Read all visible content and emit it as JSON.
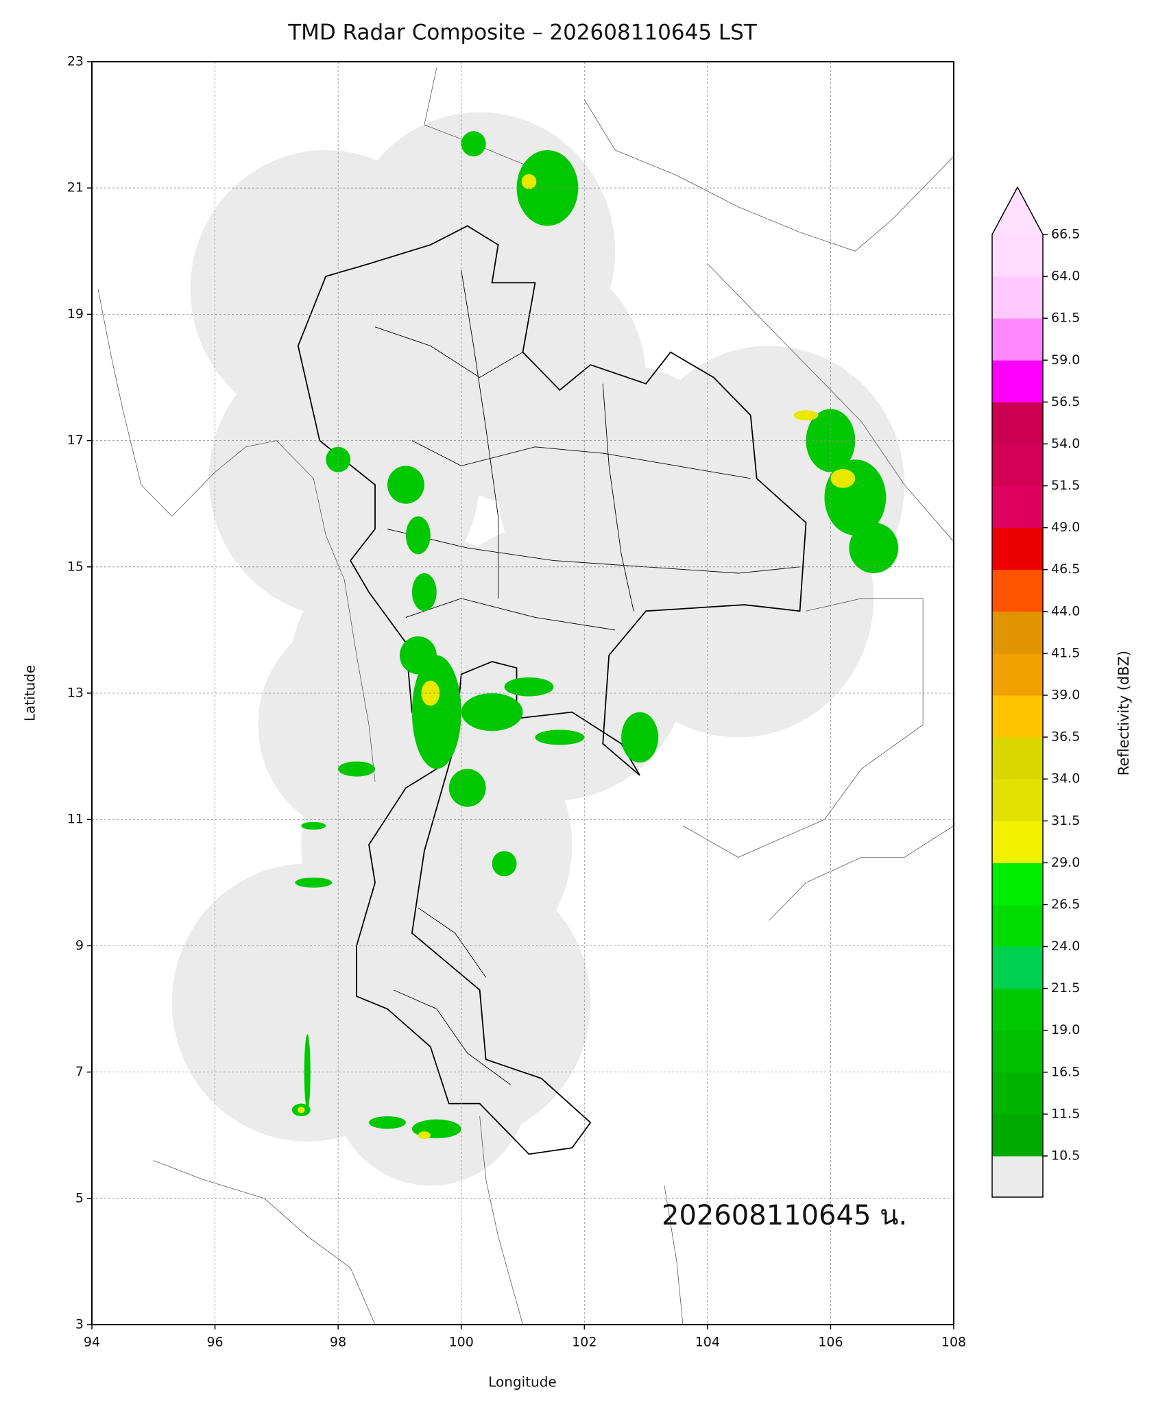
{
  "chart_data": {
    "type": "map",
    "title": "TMD Radar Composite – 202608110645 LST",
    "x_label": "Longitude",
    "y_label": "Latitude",
    "xlim": [
      94,
      108
    ],
    "ylim": [
      3,
      23
    ],
    "xticks": [
      94,
      96,
      98,
      100,
      102,
      104,
      106,
      108
    ],
    "yticks": [
      3,
      5,
      7,
      9,
      11,
      13,
      15,
      17,
      19,
      21,
      23
    ],
    "grid": true,
    "annotation": "202608110645 น.",
    "colorbar": {
      "label": "Reflectivity (dBZ)",
      "levels": [
        10.5,
        11.5,
        16.5,
        {
          "value": 19,
          "label": "19.0"
        },
        21.5,
        {
          "value": 24,
          "label": "24.0"
        },
        26.5,
        {
          "value": 29,
          "label": "29.0"
        },
        31.5,
        {
          "value": 34,
          "label": "34.0"
        },
        36.5,
        {
          "value": 39,
          "label": "39.0"
        },
        41.5,
        {
          "value": 44,
          "label": "44.0"
        },
        46.5,
        {
          "value": 49,
          "label": "49.0"
        },
        51.5,
        {
          "value": 54,
          "label": "54.0"
        },
        56.5,
        {
          "value": 59,
          "label": "59.0"
        },
        61.5,
        {
          "value": 64,
          "label": "64.0"
        },
        66.5
      ],
      "colors": [
        "#00aa00",
        "#00b400",
        "#00be00",
        "#00c800",
        "#00d050",
        "#00dc00",
        "#00ee00",
        "#f2f200",
        "#e2e000",
        "#d8d800",
        "#ffc400",
        "#f0a000",
        "#e09600",
        "#ff5500",
        "#ee0000",
        "#e00060",
        "#d40055",
        "#cc0050",
        "#ff00ff",
        "#ff88ff",
        "#ffc8ff",
        "#ffdcff"
      ],
      "under_color": "#ebebeb",
      "over_color": "#ffe0ff"
    }
  }
}
